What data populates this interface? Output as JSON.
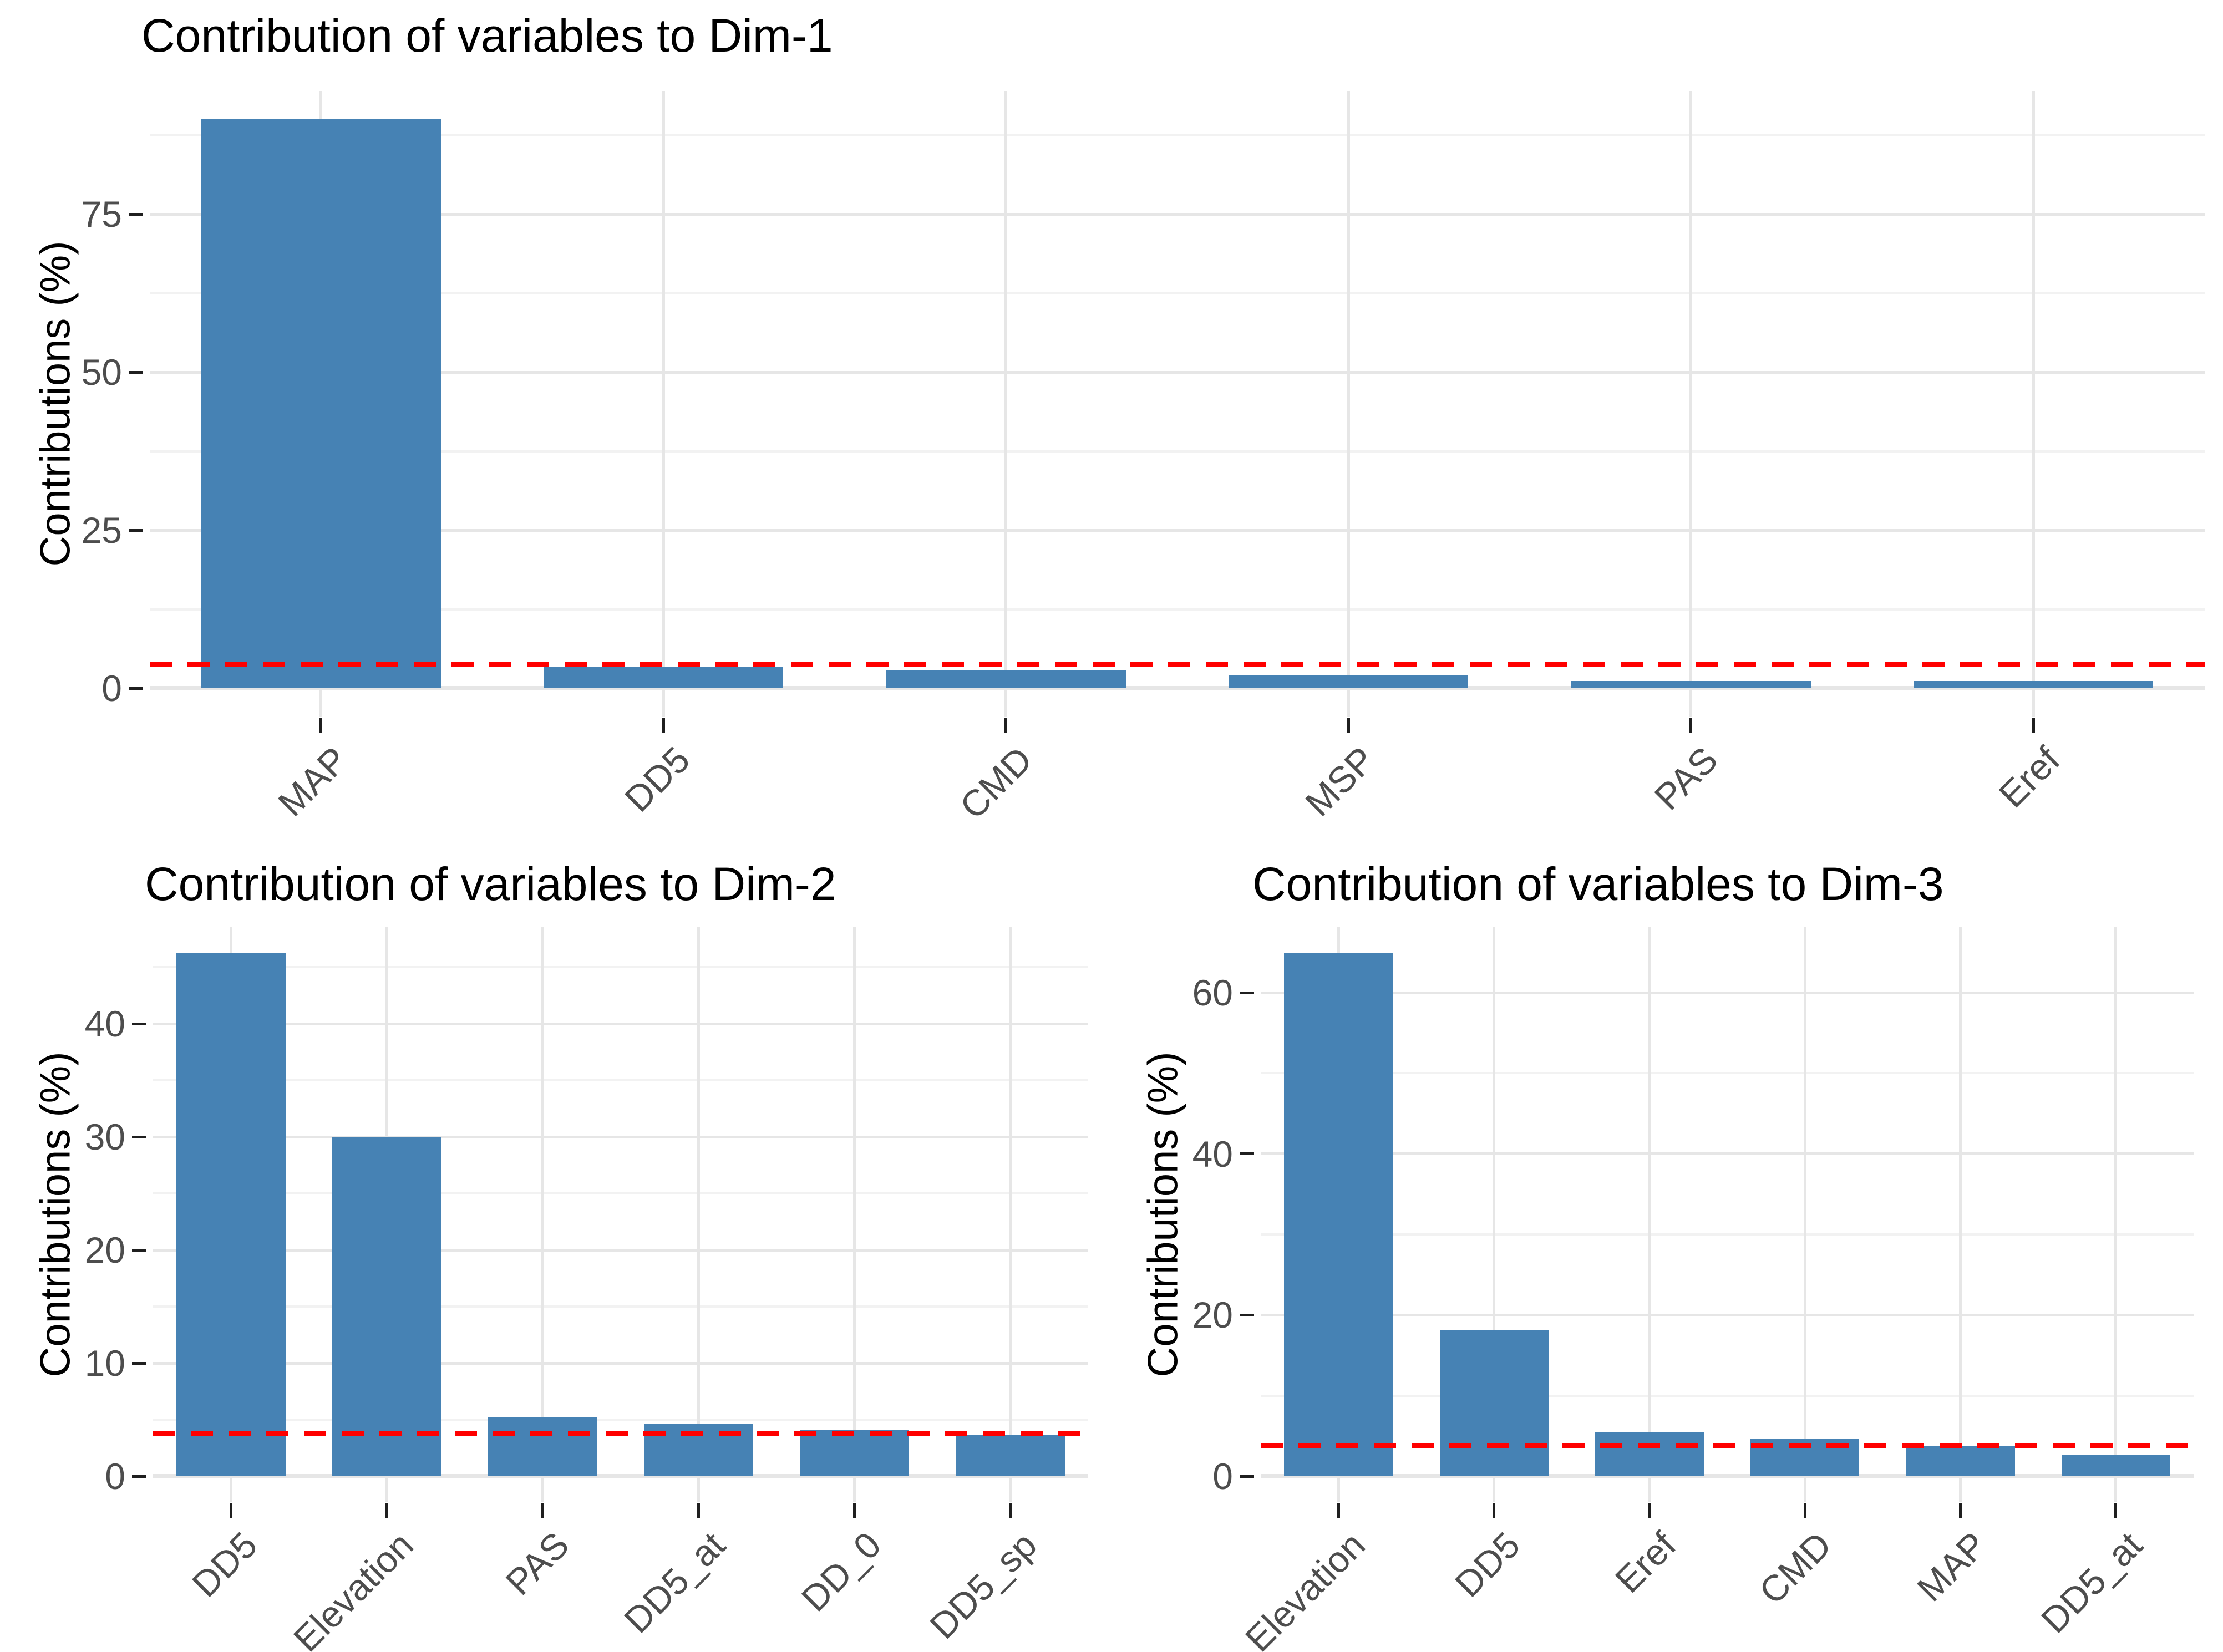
{
  "figure": {
    "background": "#FFFFFF"
  },
  "colors": {
    "bar": "#4682B4",
    "reference_line": "#FF0000",
    "grid_major": "#E6E6E6",
    "grid_minor": "#F2F2F2",
    "tick_mark": "#1F1F1F",
    "tick_text": "#4D4D4D",
    "title_text": "#000000"
  },
  "chart_data": [
    {
      "type": "bar",
      "title": "Contribution of variables to Dim-1",
      "ylabel": "Contributions (%)",
      "xlabel": "",
      "categories": [
        "MAP",
        "DD5",
        "CMD",
        "MSP",
        "PAS",
        "Eref"
      ],
      "values": [
        90.0,
        3.4,
        2.8,
        2.1,
        1.1,
        1.1
      ],
      "y_ticks": [
        0,
        25,
        50,
        75
      ],
      "ylim": [
        -4.6,
        94.5
      ],
      "reference_line": 3.8,
      "grid": true,
      "legend_position": "none"
    },
    {
      "type": "bar",
      "title": "Contribution of variables to Dim-2",
      "ylabel": "Contributions (%)",
      "xlabel": "",
      "categories": [
        "DD5",
        "Elevation",
        "PAS",
        "DD5_at",
        "DD_0",
        "DD5_sp"
      ],
      "values": [
        46.3,
        30.0,
        5.2,
        4.6,
        4.1,
        3.7
      ],
      "y_ticks": [
        0,
        10,
        20,
        30,
        40
      ],
      "ylim": [
        -2.3,
        48.6
      ],
      "reference_line": 3.8,
      "grid": true,
      "legend_position": "none"
    },
    {
      "type": "bar",
      "title": "Contribution of variables to Dim-3",
      "ylabel": "Contributions (%)",
      "xlabel": "",
      "categories": [
        "Elevation",
        "DD5",
        "Eref",
        "CMD",
        "MAP",
        "DD5_at"
      ],
      "values": [
        64.9,
        18.2,
        5.5,
        4.6,
        3.7,
        2.6
      ],
      "y_ticks": [
        0,
        20,
        40,
        60
      ],
      "ylim": [
        -3.2,
        68.2
      ],
      "reference_line": 3.8,
      "grid": true,
      "legend_position": "none"
    }
  ]
}
